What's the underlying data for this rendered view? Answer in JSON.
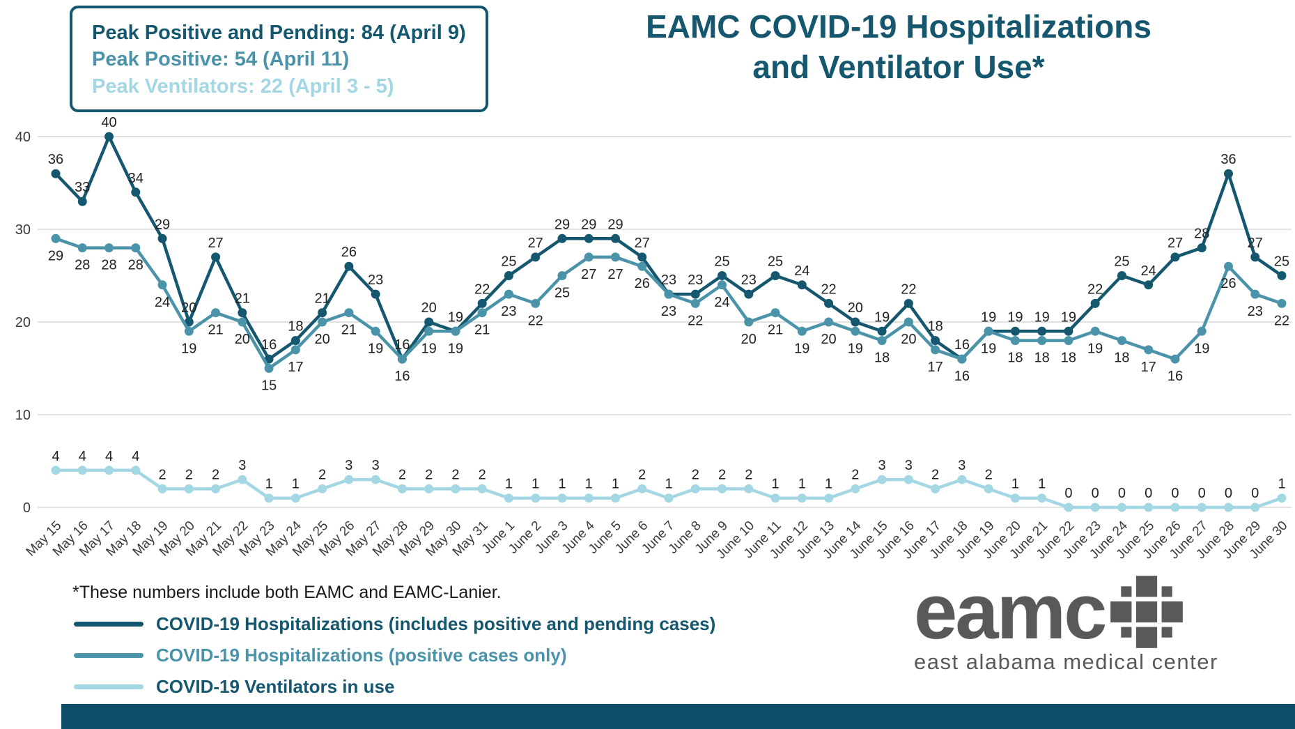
{
  "title": {
    "line1": "EAMC COVID-19 Hospitalizations",
    "line2": "and Ventilator Use*"
  },
  "peak_box": {
    "lines": [
      {
        "text": "Peak Positive and Pending: 84 (April 9)",
        "color": "#14576E"
      },
      {
        "text": "Peak Positive: 54 (April 11)",
        "color": "#4A93A9"
      },
      {
        "text": "Peak Ventilators: 22 (April 3 - 5)",
        "color": "#A4D7E4"
      }
    ]
  },
  "footnote": "*These numbers include both EAMC and EAMC-Lanier.",
  "legend": {
    "items": [
      {
        "swatch_color": "#14576E",
        "text_color": "#14576E"
      },
      {
        "swatch_color": "#4A93A9",
        "text_color": "#4A93A9"
      },
      {
        "swatch_color": "#A4D7E4",
        "text_color": "#14576E"
      }
    ]
  },
  "logo": {
    "name": "eamc",
    "subtitle": "east alabama medical center",
    "color": "#58595B"
  },
  "bottom_bar": {
    "color": "#0E4D68"
  },
  "chart_data": {
    "type": "line",
    "categories": [
      "May 15",
      "May 16",
      "May 17",
      "May 18",
      "May 19",
      "May 20",
      "May 21",
      "May 22",
      "May 23",
      "May 24",
      "May 25",
      "May 26",
      "May 27",
      "May 28",
      "May 29",
      "May 30",
      "May 31",
      "June 1",
      "June 2",
      "June 3",
      "June 4",
      "June 5",
      "June 6",
      "June 7",
      "June 8",
      "June 9",
      "June 10",
      "June 11",
      "June 12",
      "June 13",
      "June 14",
      "June 15",
      "June 16",
      "June 17",
      "June 18",
      "June 19",
      "June 20",
      "June 21",
      "June 22",
      "June 23",
      "June 24",
      "June 25",
      "June 26",
      "June 27",
      "June 28",
      "June 29",
      "June 30"
    ],
    "series": [
      {
        "name": "COVID-19 Hospitalizations (includes positive and pending cases)",
        "color": "#14576E",
        "label_position": "above",
        "values": [
          36,
          33,
          40,
          34,
          29,
          20,
          27,
          21,
          16,
          18,
          21,
          26,
          23,
          16,
          20,
          19,
          22,
          25,
          27,
          29,
          29,
          29,
          27,
          23,
          23,
          25,
          23,
          25,
          24,
          22,
          20,
          19,
          22,
          18,
          16,
          19,
          19,
          19,
          19,
          22,
          25,
          24,
          27,
          28,
          36,
          27,
          25
        ]
      },
      {
        "name": "COVID-19 Hospitalizations (positive cases only)",
        "color": "#4A93A9",
        "label_position": "below",
        "values": [
          29,
          28,
          28,
          28,
          24,
          19,
          21,
          20,
          15,
          17,
          20,
          21,
          19,
          16,
          19,
          19,
          21,
          23,
          22,
          25,
          27,
          27,
          26,
          23,
          22,
          24,
          20,
          21,
          19,
          20,
          19,
          18,
          20,
          17,
          16,
          19,
          18,
          18,
          18,
          19,
          18,
          17,
          16,
          19,
          26,
          23,
          22
        ]
      },
      {
        "name": "COVID-19 Ventilators in use",
        "color": "#A4D7E4",
        "label_position": "above",
        "values": [
          4,
          4,
          4,
          4,
          2,
          2,
          2,
          3,
          1,
          1,
          2,
          3,
          3,
          2,
          2,
          2,
          2,
          1,
          1,
          1,
          1,
          1,
          2,
          1,
          2,
          2,
          2,
          1,
          1,
          1,
          2,
          3,
          3,
          2,
          3,
          2,
          1,
          1,
          0,
          0,
          0,
          0,
          0,
          0,
          0,
          0,
          1
        ]
      }
    ],
    "ylim": [
      0,
      40
    ],
    "yticks": [
      0,
      10,
      20,
      30,
      40
    ],
    "grid": true,
    "legend_position": "bottom-left"
  }
}
